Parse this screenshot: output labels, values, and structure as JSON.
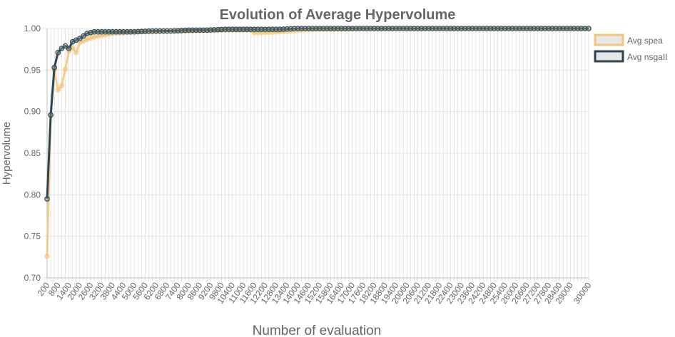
{
  "chart_data": {
    "type": "line",
    "title": "Evolution of Average Hypervolume",
    "xlabel": "Number  of  evaluation",
    "ylabel": "Hypervolume",
    "ylim": [
      0.7,
      1.0
    ],
    "y_ticks": [
      "0.70",
      "0.75",
      "0.80",
      "0.85",
      "0.90",
      "0.95",
      "1.00"
    ],
    "x_tick_labels": [
      "200",
      "800",
      "1400",
      "2000",
      "2600",
      "3200",
      "3800",
      "4400",
      "5000",
      "5600",
      "6200",
      "6800",
      "7400",
      "8000",
      "8600",
      "9200",
      "9800",
      "10400",
      "11000",
      "11600",
      "12200",
      "12800",
      "13400",
      "14000",
      "14600",
      "15200",
      "15800",
      "16400",
      "17000",
      "17600",
      "18200",
      "18800",
      "19400",
      "20000",
      "20600",
      "21200",
      "21800",
      "22400",
      "23000",
      "23600",
      "24200",
      "24800",
      "25400",
      "26000",
      "26600",
      "27200",
      "27800",
      "28400",
      "29000",
      "30000"
    ],
    "x_start": 200,
    "x_step": 200,
    "x_count": 150,
    "legend_position": "right",
    "grid": true,
    "series": [
      {
        "name": "Avg spea",
        "color": "#f2c57c",
        "anchors": [
          [
            200,
            0.726
          ],
          [
            400,
            0.895
          ],
          [
            600,
            0.95
          ],
          [
            800,
            0.926
          ],
          [
            1000,
            0.931
          ],
          [
            1200,
            0.951
          ],
          [
            1400,
            0.973
          ],
          [
            1600,
            0.977
          ],
          [
            1800,
            0.971
          ],
          [
            2000,
            0.983
          ],
          [
            2400,
            0.987
          ],
          [
            3000,
            0.991
          ],
          [
            3800,
            0.994
          ],
          [
            5000,
            0.996
          ],
          [
            6000,
            0.996
          ],
          [
            7000,
            0.997
          ],
          [
            8000,
            0.997
          ],
          [
            9000,
            0.998
          ],
          [
            10000,
            0.998
          ],
          [
            11000,
            0.998
          ],
          [
            11400,
            0.998
          ],
          [
            11600,
            0.995
          ],
          [
            12000,
            0.995
          ],
          [
            13000,
            0.996
          ],
          [
            14000,
            0.998
          ],
          [
            15000,
            0.999
          ],
          [
            16000,
            0.999
          ],
          [
            18000,
            1.0
          ],
          [
            20000,
            1.0
          ],
          [
            25000,
            1.0
          ],
          [
            30000,
            1.0
          ]
        ]
      },
      {
        "name": "Avg nsgaII",
        "color": "#2d4550",
        "anchors": [
          [
            200,
            0.795
          ],
          [
            400,
            0.896
          ],
          [
            600,
            0.953
          ],
          [
            800,
            0.971
          ],
          [
            1000,
            0.976
          ],
          [
            1200,
            0.979
          ],
          [
            1400,
            0.976
          ],
          [
            1600,
            0.984
          ],
          [
            1800,
            0.986
          ],
          [
            2000,
            0.988
          ],
          [
            2200,
            0.991
          ],
          [
            2400,
            0.994
          ],
          [
            2600,
            0.995
          ],
          [
            2800,
            0.996
          ],
          [
            3200,
            0.996
          ],
          [
            4000,
            0.996
          ],
          [
            5000,
            0.996
          ],
          [
            6000,
            0.997
          ],
          [
            7000,
            0.997
          ],
          [
            8000,
            0.998
          ],
          [
            9000,
            0.998
          ],
          [
            10000,
            0.999
          ],
          [
            11000,
            0.999
          ],
          [
            12000,
            0.999
          ],
          [
            13000,
            0.999
          ],
          [
            14000,
            1.0
          ],
          [
            16000,
            1.0
          ],
          [
            20000,
            1.0
          ],
          [
            30000,
            1.0
          ]
        ]
      }
    ]
  }
}
